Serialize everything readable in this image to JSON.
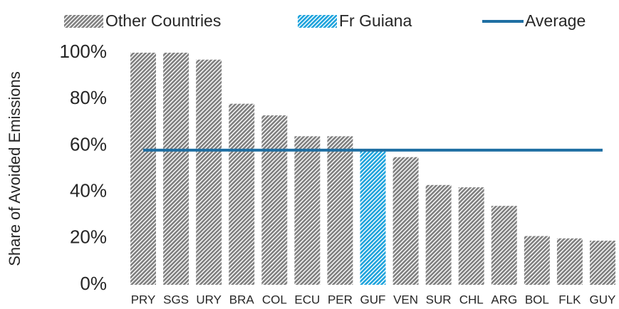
{
  "chart_data": {
    "type": "bar",
    "y_label": "Share of Avoided Emissions",
    "categories": [
      "PRY",
      "SGS",
      "URY",
      "BRA",
      "COL",
      "ECU",
      "PER",
      "GUF",
      "VEN",
      "SUR",
      "CHL",
      "ARG",
      "BOL",
      "FLK",
      "GUY"
    ],
    "series": [
      {
        "name": "Other Countries",
        "type": "bar",
        "color": "#7f7f7f",
        "hatch": true,
        "values": [
          100,
          100,
          97,
          78,
          73,
          64,
          64,
          null,
          55,
          43,
          42,
          34,
          21,
          20,
          19
        ]
      },
      {
        "name": "Fr Guiana",
        "type": "bar",
        "color": "#1ea3dc",
        "hatch": true,
        "values": [
          null,
          null,
          null,
          null,
          null,
          null,
          null,
          58,
          null,
          null,
          null,
          null,
          null,
          null,
          null
        ]
      },
      {
        "name": "Average",
        "type": "line",
        "color": "#1f6fa3",
        "values": [
          58,
          58,
          58,
          58,
          58,
          58,
          58,
          58,
          58,
          58,
          58,
          58,
          58,
          58,
          58
        ]
      }
    ],
    "ylim": [
      0,
      100
    ],
    "yticks": [
      {
        "value": 0,
        "label": "0%"
      },
      {
        "value": 20,
        "label": "20%"
      },
      {
        "value": 40,
        "label": "40%"
      },
      {
        "value": 60,
        "label": "60%"
      },
      {
        "value": 80,
        "label": "80%"
      },
      {
        "value": 100,
        "label": "100%"
      }
    ],
    "legend": "top",
    "grid": false
  }
}
